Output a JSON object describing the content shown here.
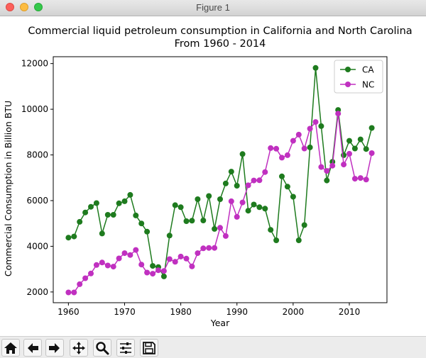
{
  "window": {
    "title": "Figure 1"
  },
  "toolbar": {
    "buttons": [
      {
        "icon": "home-icon"
      },
      {
        "icon": "back-arrow-icon"
      },
      {
        "icon": "forward-arrow-icon"
      },
      {
        "icon": "pan-icon"
      },
      {
        "icon": "zoom-icon"
      },
      {
        "icon": "configure-subplots-icon"
      },
      {
        "icon": "save-icon"
      }
    ]
  },
  "chart_data": {
    "type": "line",
    "title": "Commercial liquid petroleum consumption in California and North Carolina",
    "subtitle": "From 1960 - 2014",
    "xlabel": "Year",
    "ylabel": "Commercial Consumption in Billion BTU",
    "xlim": [
      1957.3,
      2016.7
    ],
    "ylim": [
      1530,
      12300
    ],
    "xticks": [
      1960,
      1970,
      1980,
      1990,
      2000,
      2010
    ],
    "yticks": [
      2000,
      4000,
      6000,
      8000,
      10000,
      12000
    ],
    "ytick_labels": [
      "2000",
      "4000",
      "6000",
      "8000",
      "10000",
      "12000"
    ],
    "grid": false,
    "legend_position": "upper-right",
    "x": [
      1960,
      1961,
      1962,
      1963,
      1964,
      1965,
      1966,
      1967,
      1968,
      1969,
      1970,
      1971,
      1972,
      1973,
      1974,
      1975,
      1976,
      1977,
      1978,
      1979,
      1980,
      1981,
      1982,
      1983,
      1984,
      1985,
      1986,
      1987,
      1988,
      1989,
      1990,
      1991,
      1992,
      1993,
      1994,
      1995,
      1996,
      1997,
      1998,
      1999,
      2000,
      2001,
      2002,
      2003,
      2004,
      2005,
      2006,
      2007,
      2008,
      2009,
      2010,
      2011,
      2012,
      2013,
      2014
    ],
    "series": [
      {
        "name": "CA",
        "color": "#1e7b1e",
        "values": [
          4380,
          4430,
          5070,
          5480,
          5730,
          5890,
          4560,
          5380,
          5380,
          5880,
          5970,
          6250,
          5350,
          5000,
          4640,
          3140,
          3090,
          2680,
          4470,
          5800,
          5710,
          5100,
          5120,
          6060,
          5130,
          6200,
          4760,
          6060,
          6750,
          7270,
          6650,
          8040,
          5560,
          5830,
          5710,
          5650,
          4720,
          4260,
          7060,
          6610,
          6170,
          4260,
          4930,
          8330,
          11810,
          9260,
          6880,
          7700,
          9970,
          7990,
          8620,
          8280,
          8680,
          8260,
          9180
        ]
      },
      {
        "name": "NC",
        "color": "#c030c0",
        "values": [
          1980,
          1980,
          2340,
          2600,
          2810,
          3180,
          3290,
          3160,
          3110,
          3470,
          3700,
          3620,
          3840,
          3200,
          2850,
          2800,
          2950,
          2920,
          3440,
          3320,
          3550,
          3460,
          3120,
          3700,
          3910,
          3930,
          3930,
          4810,
          4450,
          5970,
          5290,
          5920,
          6670,
          6880,
          6890,
          7250,
          8300,
          8270,
          7880,
          7990,
          8620,
          8890,
          8280,
          9150,
          9440,
          7470,
          7300,
          7530,
          9810,
          7580,
          8050,
          6960,
          6990,
          6920,
          8080
        ]
      }
    ]
  }
}
